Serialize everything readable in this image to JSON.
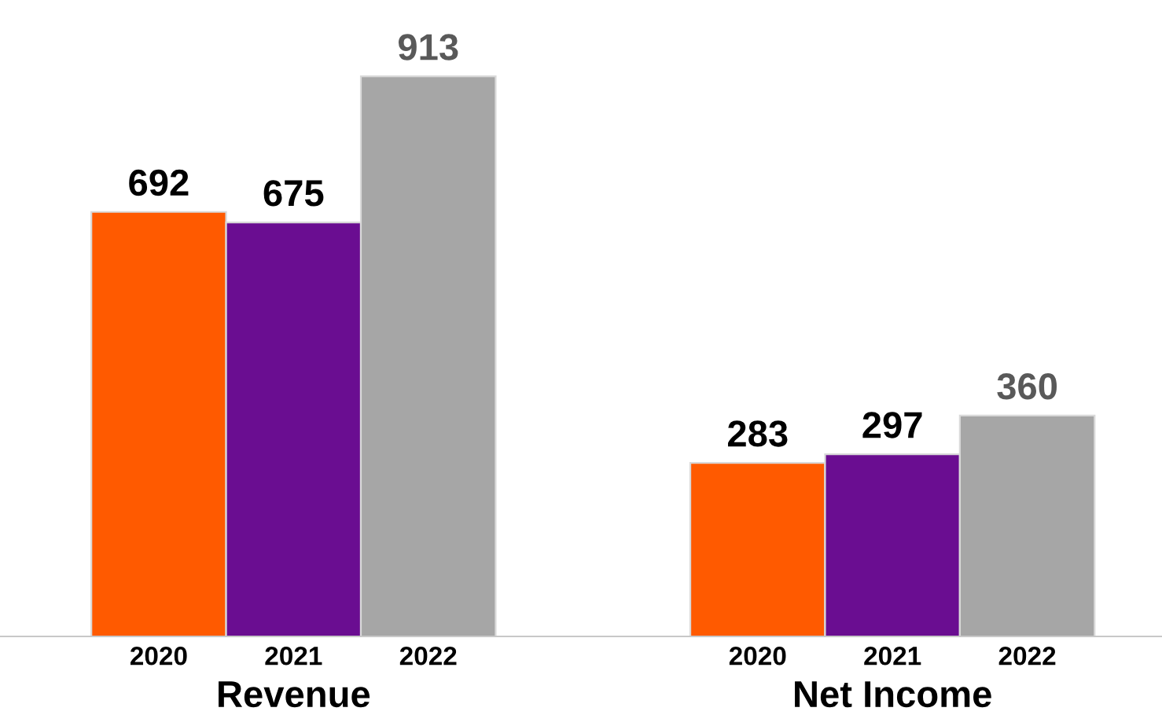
{
  "chart_data": {
    "type": "bar",
    "categories": [
      "Revenue",
      "Net Income"
    ],
    "series": [
      {
        "name": "2020",
        "color": "#ff5a00",
        "values": [
          692,
          283
        ]
      },
      {
        "name": "2021",
        "color": "#6a0d91",
        "values": [
          675,
          297
        ]
      },
      {
        "name": "2022",
        "color": "#a6a6a6",
        "values": [
          913,
          360
        ]
      }
    ],
    "data_labels": true,
    "legend": false,
    "grid": false
  }
}
